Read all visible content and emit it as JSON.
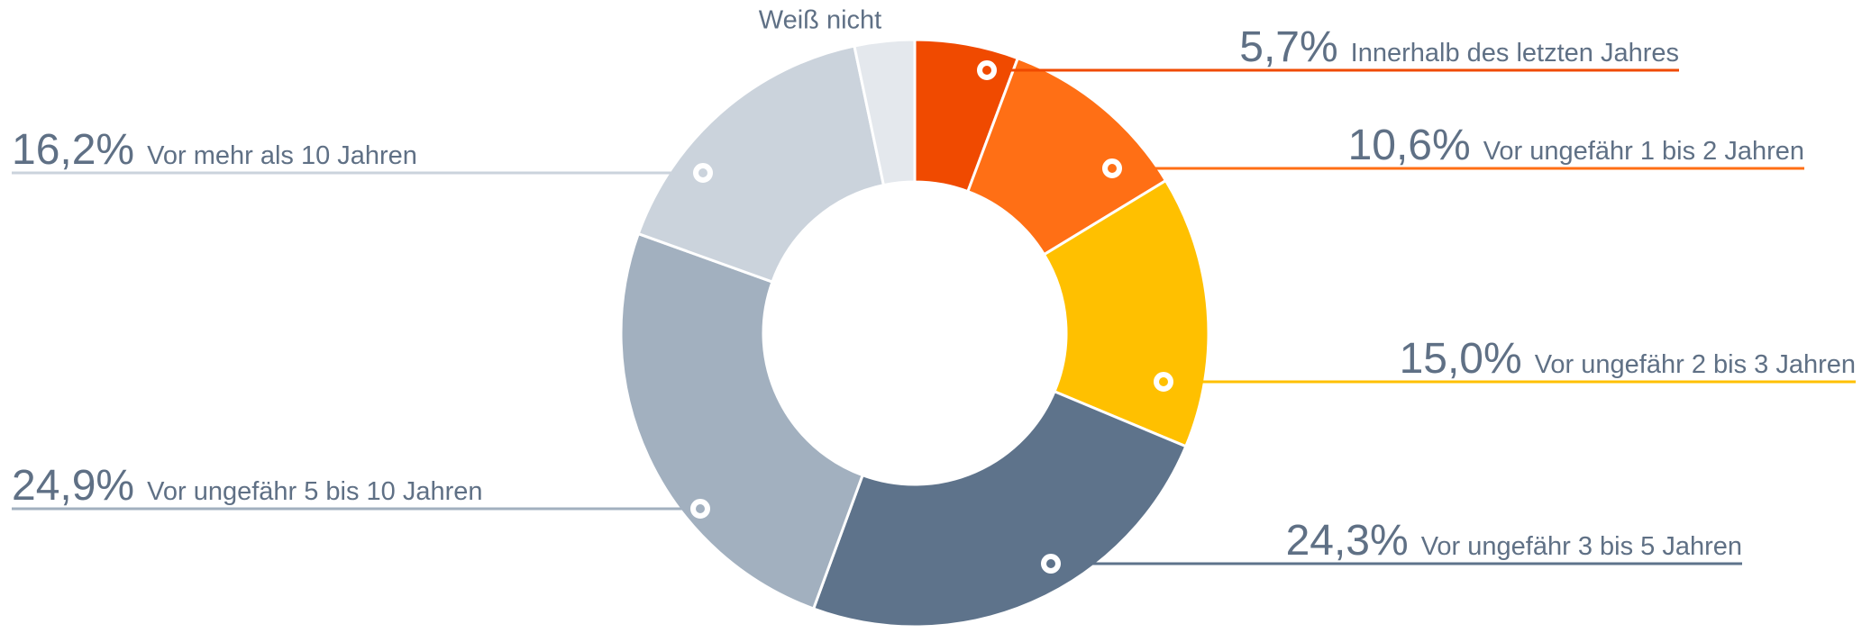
{
  "chart_data": {
    "type": "donut",
    "categories": [
      "Innerhalb des letzten Jahres",
      "Vor ungefähr 1 bis 2 Jahren",
      "Vor ungefähr 2 bis 3 Jahren",
      "Vor ungefähr 3 bis 5 Jahren",
      "Vor ungefähr 5 bis 10 Jahren",
      "Vor mehr als 10 Jahren",
      "Weiß nicht"
    ],
    "values": [
      5.7,
      10.6,
      15.0,
      24.3,
      24.9,
      16.2,
      3.3
    ],
    "value_labels": [
      "5,7%",
      "10,6%",
      "15,0%",
      "24,3%",
      "24,9%",
      "16,2%",
      null
    ],
    "colors": [
      "#f04a00",
      "#ff6f15",
      "#ffc000",
      "#5e738b",
      "#a2b0bf",
      "#cbd3dc",
      "#e4e8ed"
    ]
  }
}
